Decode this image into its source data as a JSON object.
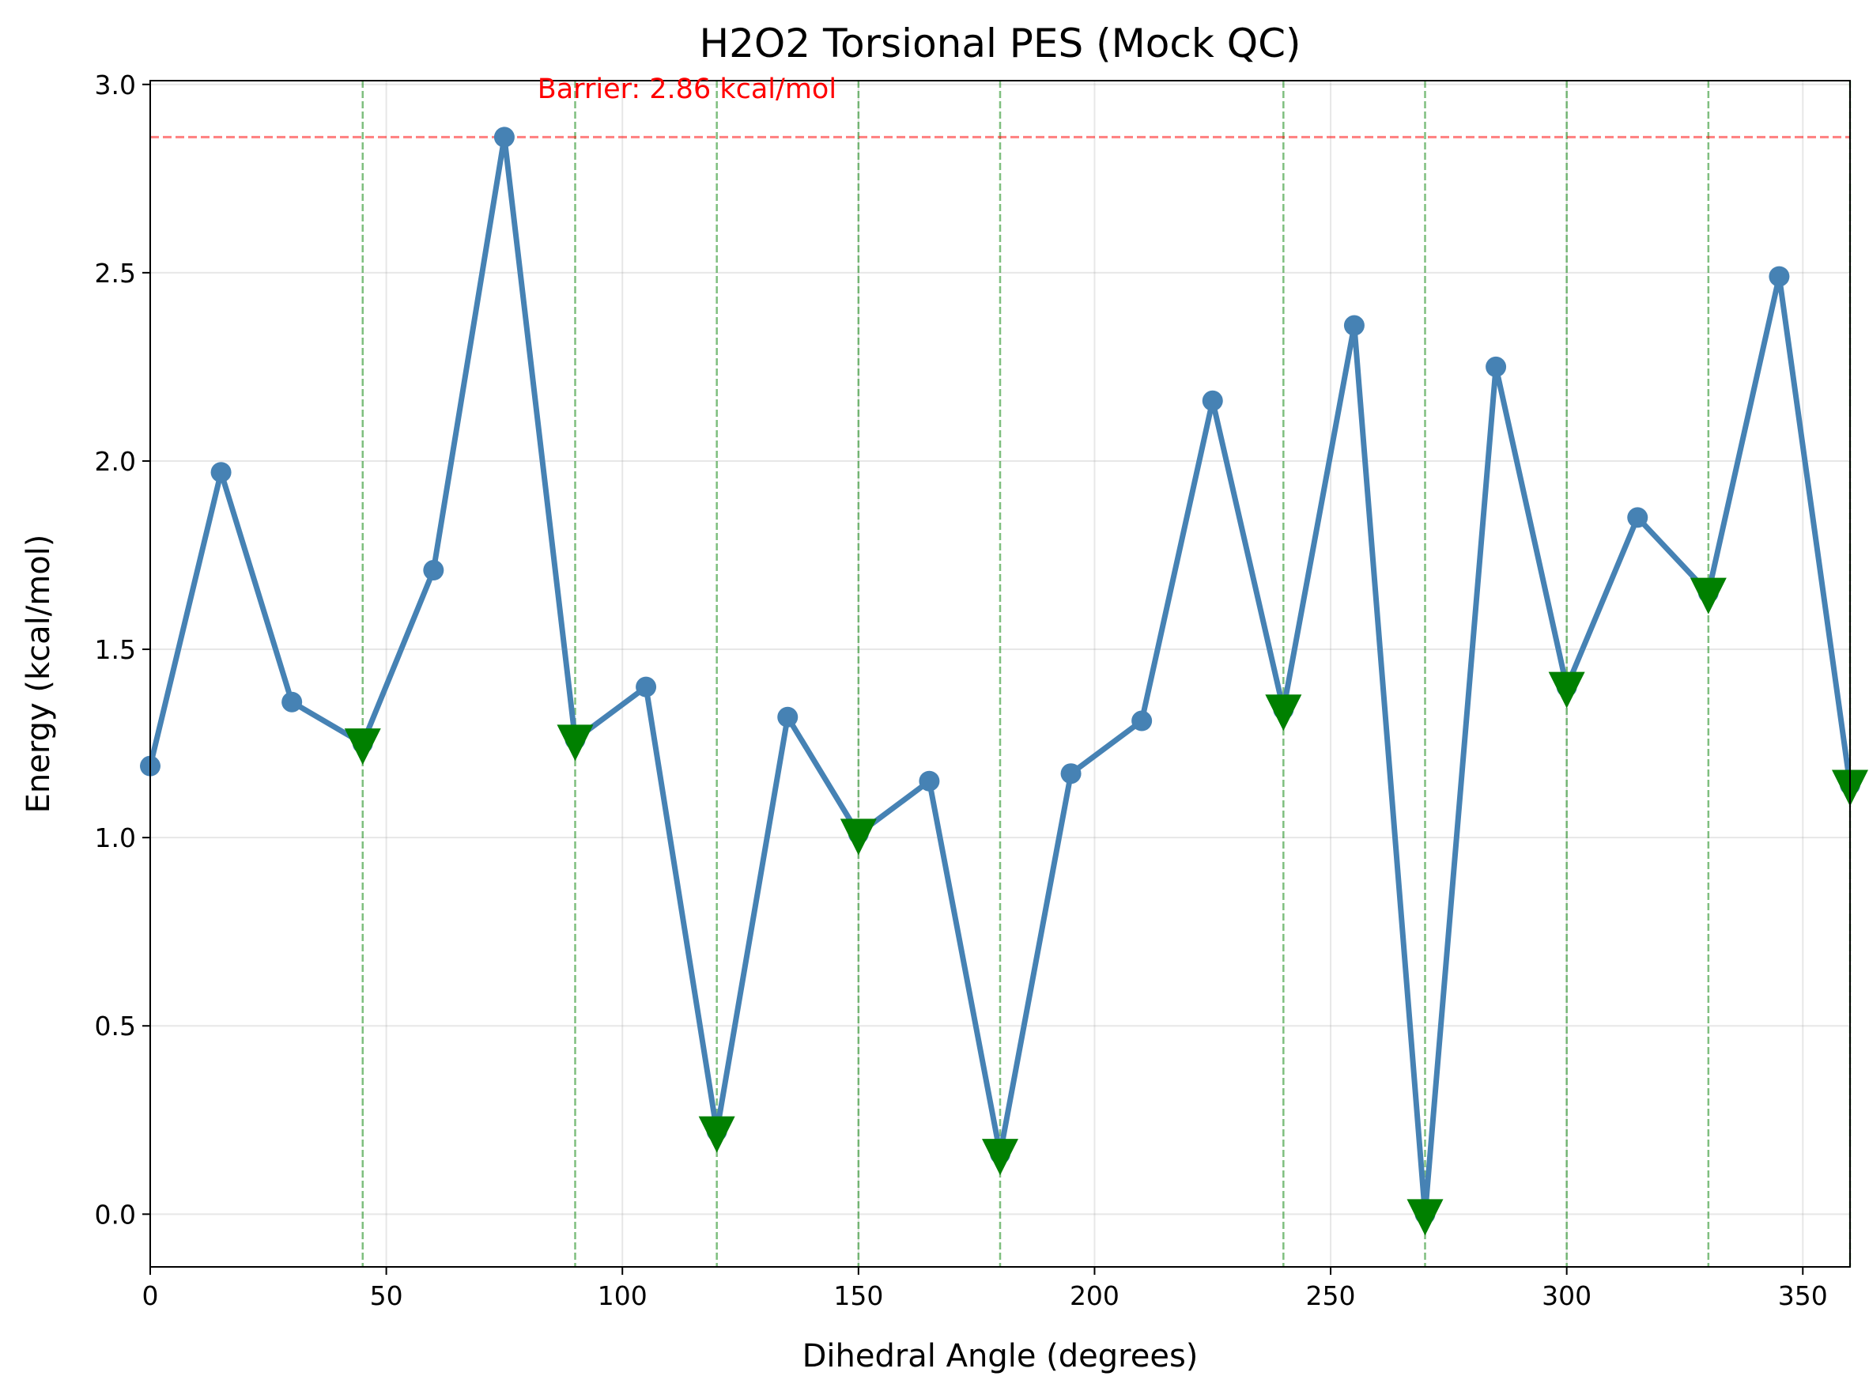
{
  "chart_data": {
    "type": "line",
    "title": "H2O2 Torsional PES (Mock QC)",
    "xlabel": "Dihedral Angle (degrees)",
    "ylabel": "Energy (kcal/mol)",
    "xlim": [
      0,
      360
    ],
    "ylim": [
      -0.14,
      3.01
    ],
    "xticks": [
      0,
      50,
      100,
      150,
      200,
      250,
      300,
      350
    ],
    "yticks": [
      0.0,
      0.5,
      1.0,
      1.5,
      2.0,
      2.5,
      3.0
    ],
    "xtick_labels": [
      "0",
      "50",
      "100",
      "150",
      "200",
      "250",
      "300",
      "350"
    ],
    "ytick_labels": [
      "0.0",
      "0.5",
      "1.0",
      "1.5",
      "2.0",
      "2.5",
      "3.0"
    ],
    "grid": true,
    "series": [
      {
        "x": [
          0,
          15,
          30,
          45,
          60,
          75,
          90,
          105,
          120,
          135,
          150,
          165,
          180,
          195,
          210,
          225,
          240,
          255,
          270,
          285,
          300,
          315,
          330,
          345,
          360
        ],
        "values": [
          1.19,
          1.97,
          1.36,
          1.25,
          1.71,
          2.86,
          1.26,
          1.4,
          0.22,
          1.32,
          1.01,
          1.15,
          0.16,
          1.17,
          1.31,
          2.16,
          1.34,
          2.36,
          0.0,
          2.25,
          1.4,
          1.85,
          1.65,
          2.49,
          1.14
        ],
        "color": "#4682b4",
        "marker": "circle"
      }
    ],
    "minima": {
      "x": [
        45,
        90,
        120,
        150,
        180,
        240,
        270,
        300,
        330,
        360
      ],
      "values": [
        1.25,
        1.26,
        0.22,
        1.01,
        0.16,
        1.34,
        0.0,
        1.4,
        1.65,
        1.14
      ],
      "color": "#008000",
      "marker": "triangle-down",
      "vline_color": "#008000"
    },
    "barrier": {
      "value": 2.86,
      "label": "Barrier: 2.86 kcal/mol",
      "label_x": 82,
      "color": "#ff0000"
    }
  }
}
